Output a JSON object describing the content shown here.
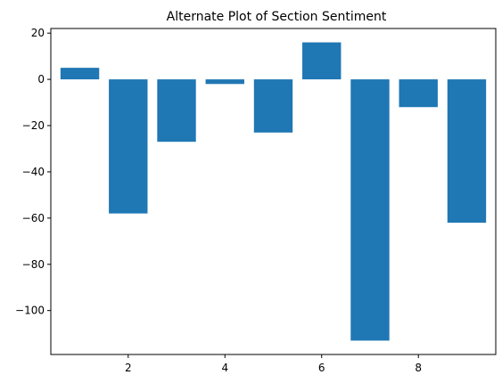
{
  "chart_data": {
    "type": "bar",
    "title": "Alternate Plot of Section Sentiment",
    "xlabel": "",
    "ylabel": "",
    "x": [
      1,
      2,
      3,
      4,
      5,
      6,
      7,
      8,
      9
    ],
    "values": [
      5,
      -58,
      -27,
      -2,
      -23,
      16,
      -113,
      -12,
      -62
    ],
    "xlim": [
      0.4,
      9.6
    ],
    "ylim": [
      -119,
      22
    ],
    "xticks": [
      2,
      4,
      6,
      8
    ],
    "xtick_labels": [
      "2",
      "4",
      "6",
      "8"
    ],
    "yticks": [
      20,
      0,
      -20,
      -40,
      -60,
      -80,
      -100
    ],
    "ytick_labels": [
      "20",
      "0",
      "−20",
      "−40",
      "−60",
      "−80",
      "−100"
    ],
    "bar_color": "#1f77b4",
    "grid": false,
    "legend": "none"
  }
}
